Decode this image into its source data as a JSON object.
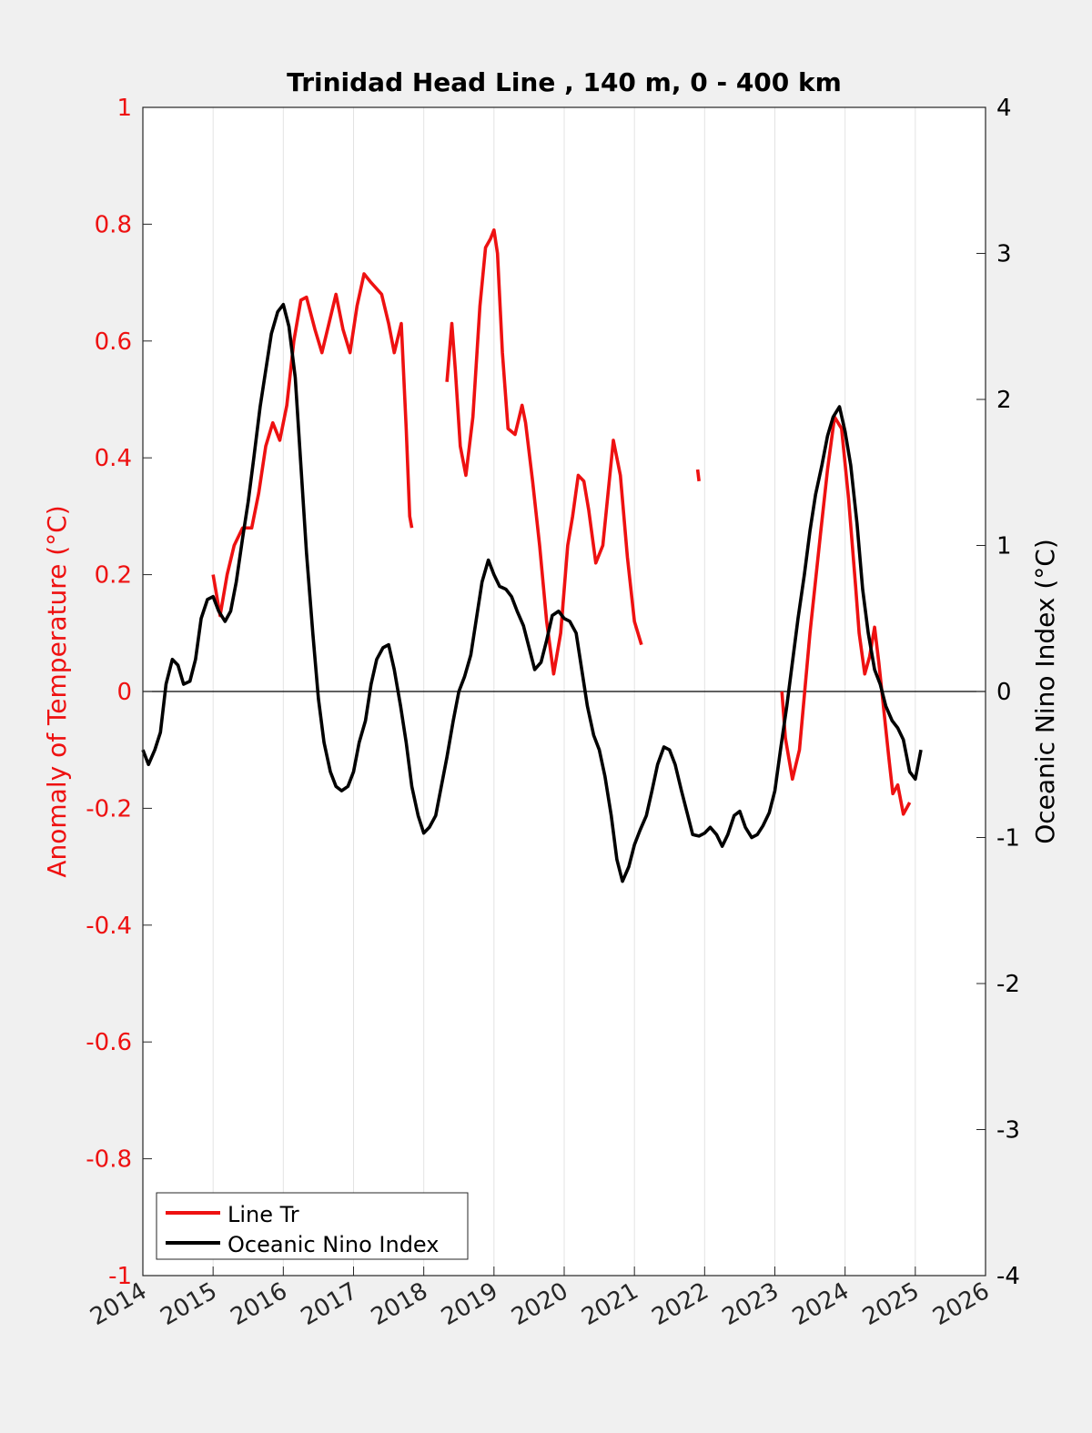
{
  "chart_data": {
    "type": "line",
    "title": "Trinidad Head Line , 140 m, 0 - 400 km",
    "xlabel": "",
    "ylabel_left": "Anomaly of Temperature (°C)",
    "ylabel_right": "Oceanic Nino Index (°C)",
    "xlim": [
      2014,
      2026
    ],
    "ylim_left": [
      -1,
      1
    ],
    "ylim_right": [
      -4,
      4
    ],
    "x_ticks": [
      "2014",
      "2015",
      "2016",
      "2017",
      "2018",
      "2019",
      "2020",
      "2021",
      "2022",
      "2023",
      "2024",
      "2025",
      "2026"
    ],
    "y_ticks_left": [
      "1",
      "0.8",
      "0.6",
      "0.4",
      "0.2",
      "0",
      "-0.2",
      "-0.4",
      "-0.6",
      "-0.8",
      "-1"
    ],
    "y_ticks_right": [
      "4",
      "3",
      "2",
      "1",
      "0",
      "-1",
      "-2",
      "-3",
      "-4"
    ],
    "grid": "vertical",
    "zero_line": true,
    "legend_position": "bottom-left",
    "colors": {
      "line_tr": "#ee1111",
      "oni": "#000000",
      "left_axis": "#ee1111",
      "right_axis": "#000000"
    },
    "series": [
      {
        "name": "Line Tr",
        "axis": "left",
        "segments": [
          [
            [
              2015.0,
              0.2
            ],
            [
              2015.1,
              0.13
            ],
            [
              2015.2,
              0.2
            ],
            [
              2015.3,
              0.25
            ],
            [
              2015.42,
              0.28
            ],
            [
              2015.55,
              0.28
            ],
            [
              2015.65,
              0.34
            ],
            [
              2015.75,
              0.42
            ],
            [
              2015.85,
              0.46
            ],
            [
              2015.95,
              0.43
            ],
            [
              2016.05,
              0.49
            ],
            [
              2016.15,
              0.6
            ],
            [
              2016.25,
              0.67
            ],
            [
              2016.33,
              0.675
            ],
            [
              2016.45,
              0.62
            ],
            [
              2016.55,
              0.58
            ],
            [
              2016.65,
              0.63
            ],
            [
              2016.75,
              0.68
            ],
            [
              2016.85,
              0.62
            ],
            [
              2016.95,
              0.58
            ],
            [
              2017.05,
              0.66
            ],
            [
              2017.15,
              0.715
            ],
            [
              2017.25,
              0.7
            ],
            [
              2017.4,
              0.68
            ],
            [
              2017.5,
              0.63
            ],
            [
              2017.58,
              0.58
            ],
            [
              2017.68,
              0.63
            ],
            [
              2017.75,
              0.45
            ],
            [
              2017.8,
              0.3
            ],
            [
              2017.83,
              0.28
            ]
          ],
          [
            [
              2018.33,
              0.53
            ],
            [
              2018.4,
              0.63
            ],
            [
              2018.45,
              0.55
            ],
            [
              2018.52,
              0.42
            ],
            [
              2018.6,
              0.37
            ],
            [
              2018.7,
              0.47
            ],
            [
              2018.8,
              0.66
            ],
            [
              2018.88,
              0.76
            ],
            [
              2018.95,
              0.775
            ],
            [
              2019.0,
              0.79
            ],
            [
              2019.05,
              0.75
            ],
            [
              2019.12,
              0.58
            ],
            [
              2019.2,
              0.45
            ],
            [
              2019.3,
              0.44
            ],
            [
              2019.4,
              0.49
            ],
            [
              2019.45,
              0.46
            ],
            [
              2019.55,
              0.36
            ],
            [
              2019.65,
              0.25
            ],
            [
              2019.75,
              0.12
            ],
            [
              2019.85,
              0.03
            ],
            [
              2019.95,
              0.1
            ],
            [
              2020.05,
              0.25
            ],
            [
              2020.12,
              0.3
            ],
            [
              2020.2,
              0.37
            ],
            [
              2020.28,
              0.36
            ],
            [
              2020.35,
              0.31
            ],
            [
              2020.45,
              0.22
            ],
            [
              2020.55,
              0.25
            ],
            [
              2020.65,
              0.37
            ],
            [
              2020.7,
              0.43
            ],
            [
              2020.8,
              0.37
            ],
            [
              2020.9,
              0.23
            ],
            [
              2021.0,
              0.12
            ],
            [
              2021.1,
              0.08
            ]
          ],
          [
            [
              2021.9,
              0.38
            ],
            [
              2021.92,
              0.36
            ]
          ],
          [
            [
              2023.1,
              0.0
            ],
            [
              2023.15,
              -0.08
            ],
            [
              2023.25,
              -0.15
            ],
            [
              2023.35,
              -0.1
            ],
            [
              2023.5,
              0.1
            ],
            [
              2023.65,
              0.27
            ],
            [
              2023.75,
              0.38
            ],
            [
              2023.85,
              0.47
            ],
            [
              2023.95,
              0.45
            ],
            [
              2024.05,
              0.33
            ],
            [
              2024.15,
              0.18
            ],
            [
              2024.2,
              0.1
            ],
            [
              2024.28,
              0.03
            ],
            [
              2024.35,
              0.06
            ],
            [
              2024.42,
              0.11
            ],
            [
              2024.48,
              0.05
            ],
            [
              2024.55,
              -0.03
            ],
            [
              2024.62,
              -0.11
            ],
            [
              2024.68,
              -0.175
            ],
            [
              2024.75,
              -0.16
            ],
            [
              2024.83,
              -0.21
            ],
            [
              2024.92,
              -0.19
            ]
          ]
        ]
      },
      {
        "name": "Oceanic Nino Index",
        "axis": "right",
        "points": [
          [
            2014.0,
            -0.4
          ],
          [
            2014.08,
            -0.5
          ],
          [
            2014.17,
            -0.4
          ],
          [
            2014.25,
            -0.28
          ],
          [
            2014.33,
            0.05
          ],
          [
            2014.42,
            0.22
          ],
          [
            2014.5,
            0.18
          ],
          [
            2014.58,
            0.05
          ],
          [
            2014.67,
            0.07
          ],
          [
            2014.75,
            0.22
          ],
          [
            2014.83,
            0.5
          ],
          [
            2014.92,
            0.63
          ],
          [
            2015.0,
            0.65
          ],
          [
            2015.08,
            0.55
          ],
          [
            2015.17,
            0.48
          ],
          [
            2015.25,
            0.55
          ],
          [
            2015.33,
            0.75
          ],
          [
            2015.42,
            1.05
          ],
          [
            2015.5,
            1.3
          ],
          [
            2015.58,
            1.6
          ],
          [
            2015.67,
            1.95
          ],
          [
            2015.75,
            2.2
          ],
          [
            2015.83,
            2.45
          ],
          [
            2015.92,
            2.6
          ],
          [
            2016.0,
            2.65
          ],
          [
            2016.08,
            2.5
          ],
          [
            2016.17,
            2.15
          ],
          [
            2016.25,
            1.55
          ],
          [
            2016.33,
            0.95
          ],
          [
            2016.42,
            0.4
          ],
          [
            2016.5,
            -0.05
          ],
          [
            2016.58,
            -0.35
          ],
          [
            2016.67,
            -0.55
          ],
          [
            2016.75,
            -0.65
          ],
          [
            2016.83,
            -0.68
          ],
          [
            2016.92,
            -0.65
          ],
          [
            2017.0,
            -0.55
          ],
          [
            2017.08,
            -0.35
          ],
          [
            2017.17,
            -0.2
          ],
          [
            2017.25,
            0.05
          ],
          [
            2017.33,
            0.22
          ],
          [
            2017.42,
            0.3
          ],
          [
            2017.5,
            0.32
          ],
          [
            2017.58,
            0.15
          ],
          [
            2017.67,
            -0.1
          ],
          [
            2017.75,
            -0.35
          ],
          [
            2017.83,
            -0.65
          ],
          [
            2017.92,
            -0.85
          ],
          [
            2018.0,
            -0.97
          ],
          [
            2018.08,
            -0.93
          ],
          [
            2018.17,
            -0.85
          ],
          [
            2018.25,
            -0.65
          ],
          [
            2018.33,
            -0.45
          ],
          [
            2018.42,
            -0.2
          ],
          [
            2018.5,
            0.0
          ],
          [
            2018.58,
            0.1
          ],
          [
            2018.67,
            0.25
          ],
          [
            2018.75,
            0.5
          ],
          [
            2018.83,
            0.75
          ],
          [
            2018.92,
            0.9
          ],
          [
            2019.0,
            0.8
          ],
          [
            2019.08,
            0.72
          ],
          [
            2019.17,
            0.7
          ],
          [
            2019.25,
            0.65
          ],
          [
            2019.33,
            0.55
          ],
          [
            2019.42,
            0.45
          ],
          [
            2019.5,
            0.3
          ],
          [
            2019.58,
            0.15
          ],
          [
            2019.67,
            0.2
          ],
          [
            2019.75,
            0.35
          ],
          [
            2019.83,
            0.52
          ],
          [
            2019.92,
            0.55
          ],
          [
            2020.0,
            0.5
          ],
          [
            2020.08,
            0.48
          ],
          [
            2020.17,
            0.4
          ],
          [
            2020.25,
            0.15
          ],
          [
            2020.33,
            -0.1
          ],
          [
            2020.42,
            -0.3
          ],
          [
            2020.5,
            -0.4
          ],
          [
            2020.58,
            -0.58
          ],
          [
            2020.67,
            -0.85
          ],
          [
            2020.75,
            -1.15
          ],
          [
            2020.83,
            -1.3
          ],
          [
            2020.92,
            -1.2
          ],
          [
            2021.0,
            -1.05
          ],
          [
            2021.08,
            -0.95
          ],
          [
            2021.17,
            -0.85
          ],
          [
            2021.25,
            -0.68
          ],
          [
            2021.33,
            -0.5
          ],
          [
            2021.42,
            -0.38
          ],
          [
            2021.5,
            -0.4
          ],
          [
            2021.58,
            -0.5
          ],
          [
            2021.67,
            -0.68
          ],
          [
            2021.75,
            -0.83
          ],
          [
            2021.83,
            -0.98
          ],
          [
            2021.92,
            -0.99
          ],
          [
            2022.0,
            -0.97
          ],
          [
            2022.08,
            -0.93
          ],
          [
            2022.17,
            -0.98
          ],
          [
            2022.25,
            -1.06
          ],
          [
            2022.33,
            -0.98
          ],
          [
            2022.42,
            -0.85
          ],
          [
            2022.5,
            -0.82
          ],
          [
            2022.58,
            -0.93
          ],
          [
            2022.67,
            -1.0
          ],
          [
            2022.75,
            -0.98
          ],
          [
            2022.83,
            -0.92
          ],
          [
            2022.92,
            -0.83
          ],
          [
            2023.0,
            -0.68
          ],
          [
            2023.08,
            -0.4
          ],
          [
            2023.17,
            -0.1
          ],
          [
            2023.25,
            0.2
          ],
          [
            2023.33,
            0.5
          ],
          [
            2023.42,
            0.8
          ],
          [
            2023.5,
            1.1
          ],
          [
            2023.58,
            1.35
          ],
          [
            2023.67,
            1.55
          ],
          [
            2023.75,
            1.75
          ],
          [
            2023.83,
            1.88
          ],
          [
            2023.92,
            1.95
          ],
          [
            2024.0,
            1.78
          ],
          [
            2024.08,
            1.55
          ],
          [
            2024.17,
            1.15
          ],
          [
            2024.25,
            0.7
          ],
          [
            2024.33,
            0.4
          ],
          [
            2024.42,
            0.15
          ],
          [
            2024.5,
            0.05
          ],
          [
            2024.58,
            -0.1
          ],
          [
            2024.67,
            -0.2
          ],
          [
            2024.75,
            -0.25
          ],
          [
            2024.83,
            -0.33
          ],
          [
            2024.92,
            -0.55
          ],
          [
            2025.0,
            -0.6
          ],
          [
            2025.08,
            -0.4
          ]
        ]
      }
    ]
  }
}
